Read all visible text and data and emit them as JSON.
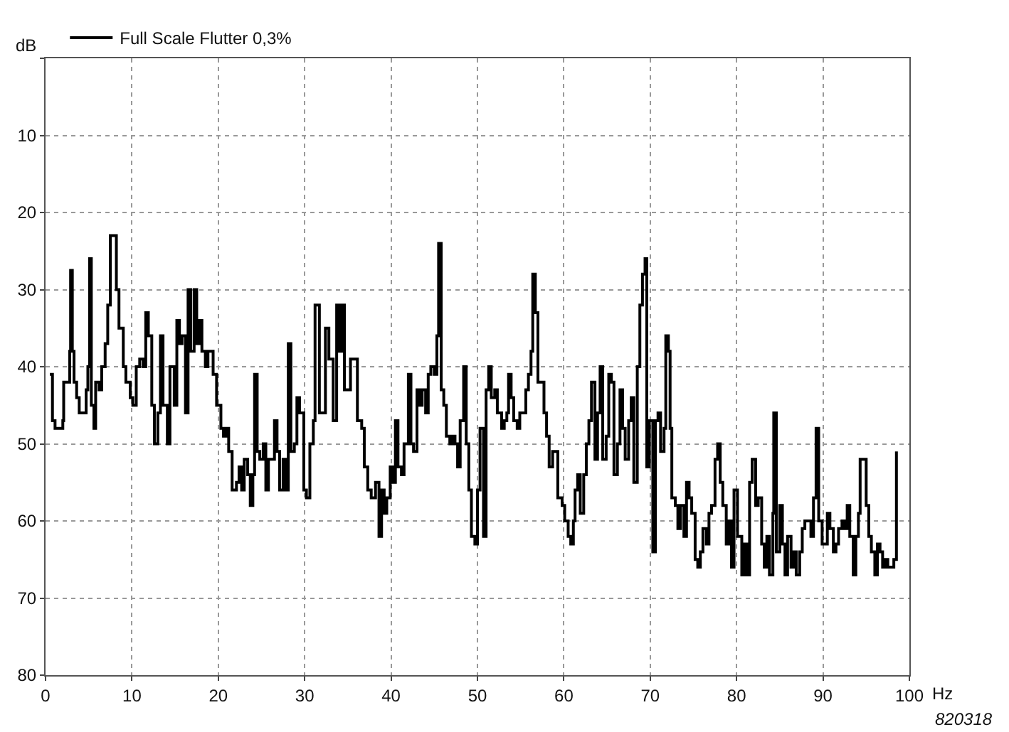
{
  "chart_data": {
    "type": "step",
    "xlabel": "Hz",
    "ylabel": "dB",
    "xlim": [
      0,
      100
    ],
    "xticks": [
      0,
      10,
      20,
      30,
      40,
      50,
      60,
      70,
      80,
      90,
      100
    ],
    "ylim": [
      80,
      0
    ],
    "yticks": [
      {
        "value": 0,
        "label": null
      },
      10,
      20,
      30,
      40,
      50,
      60,
      70,
      80
    ],
    "grid": true,
    "legend": "top left",
    "line_style": "solid",
    "marker": "none",
    "annotations": [
      "820318"
    ],
    "series": [
      {
        "name": "Full Scale Flutter 0,3%",
        "color": "#000000",
        "x": [
          0.5,
          0.8,
          1.1,
          1.6,
          2,
          2.1,
          2.6,
          2.8,
          2.9,
          3.1,
          3.3,
          3.6,
          3.9,
          4.4,
          4.7,
          4.9,
          5.1,
          5.3,
          5.6,
          5.8,
          6.2,
          6.5,
          6.9,
          7.2,
          7.5,
          8,
          8.2,
          8.5,
          9,
          9.3,
          9.8,
          10.1,
          10.5,
          10.9,
          11.3,
          11.6,
          11.9,
          12.3,
          12.6,
          13,
          13.3,
          13.6,
          14.1,
          14.4,
          14.9,
          15.2,
          15.5,
          15.8,
          16.2,
          16.5,
          16.8,
          17.2,
          17.5,
          17.8,
          18.1,
          18.5,
          18.8,
          19.1,
          19.4,
          19.8,
          20.3,
          20.6,
          20.9,
          21.2,
          21.6,
          22.1,
          22.4,
          22.7,
          23,
          23.4,
          23.7,
          24,
          24.2,
          24.5,
          24.8,
          25.2,
          25.5,
          25.8,
          26.1,
          26.5,
          26.8,
          27.1,
          27.5,
          27.8,
          28.1,
          28.4,
          28.8,
          29.1,
          29.4,
          29.7,
          29.9,
          30.2,
          30.6,
          31,
          31.2,
          31.7,
          32,
          32.4,
          32.8,
          33.3,
          33.7,
          34,
          34.3,
          34.6,
          35,
          35.3,
          35.8,
          36.1,
          36.6,
          36.9,
          37.3,
          37.7,
          38.2,
          38.6,
          38.9,
          39.2,
          39.5,
          39.9,
          40.2,
          40.5,
          40.8,
          41.2,
          41.5,
          42,
          42.3,
          42.6,
          43,
          43.3,
          43.6,
          44,
          44.3,
          44.6,
          45,
          45.3,
          45.5,
          45.8,
          46.1,
          46.4,
          46.8,
          47.1,
          47.4,
          47.7,
          48,
          48.4,
          48.7,
          49,
          49.3,
          49.7,
          50,
          50.3,
          50.7,
          51,
          51.3,
          51.6,
          52,
          52.3,
          52.8,
          53.1,
          53.4,
          53.6,
          53.9,
          54.2,
          54.6,
          54.9,
          55.2,
          55.6,
          55.9,
          56.2,
          56.4,
          56.7,
          57,
          57.4,
          57.7,
          58,
          58.3,
          58.7,
          59,
          59.3,
          59.8,
          60.1,
          60.5,
          60.8,
          61.1,
          61.3,
          61.6,
          61.9,
          62.3,
          62.6,
          62.9,
          63.2,
          63.6,
          63.9,
          64.2,
          64.5,
          64.9,
          65.2,
          65.5,
          65.8,
          66.2,
          66.5,
          66.8,
          67.1,
          67.5,
          67.8,
          68.1,
          68.5,
          68.8,
          69.1,
          69.4,
          69.6,
          69.9,
          70.3,
          70.6,
          70.9,
          71.2,
          71.6,
          71.8,
          72.1,
          72.3,
          72.5,
          72.9,
          73.2,
          73.5,
          73.9,
          74.2,
          74.5,
          74.8,
          75.2,
          75.5,
          75.8,
          76.1,
          76.5,
          76.8,
          77.1,
          77.5,
          77.8,
          78.1,
          78.4,
          78.8,
          79.1,
          79.4,
          79.7,
          80.1,
          80.6,
          80.9,
          81.2,
          81.5,
          81.8,
          82.2,
          82.5,
          82.9,
          83.2,
          83.5,
          83.8,
          84.2,
          84.3,
          84.6,
          85,
          85.3,
          85.6,
          85.9,
          86.3,
          86.6,
          86.9,
          87.3,
          87.6,
          87.9,
          88.2,
          88.6,
          88.9,
          89.2,
          89.5,
          89.9,
          90.2,
          90.5,
          90.8,
          91.2,
          91.5,
          91.8,
          92.2,
          92.5,
          92.8,
          93.1,
          93.5,
          93.8,
          94.1,
          94.3,
          94.6,
          95,
          95.3,
          95.6,
          96,
          96.3,
          96.6,
          96.9,
          97.2,
          97.5,
          97.9,
          98.2,
          98.5
        ],
        "values": [
          41,
          47,
          48,
          48,
          47,
          42,
          42,
          38,
          27.5,
          38,
          42,
          44,
          46,
          46,
          43,
          40,
          26,
          45,
          48,
          42,
          43,
          40,
          37,
          32,
          23,
          23,
          30,
          35,
          40,
          42,
          44,
          45,
          40,
          39,
          40,
          33,
          36,
          45,
          50,
          46,
          36,
          45,
          50,
          40,
          45,
          34,
          37,
          36,
          46,
          30,
          38,
          30,
          37,
          34,
          38,
          40,
          38,
          38,
          41,
          45,
          48,
          49,
          48,
          51,
          56,
          55,
          53,
          56,
          52,
          54,
          58,
          54,
          41,
          51,
          52,
          50,
          56,
          52,
          52,
          47,
          51,
          56,
          52,
          56,
          37,
          51,
          50,
          44,
          46,
          46,
          56,
          57,
          50,
          47,
          32,
          46,
          46,
          35,
          39,
          47,
          32,
          38,
          32,
          43,
          43,
          39,
          39,
          47,
          48,
          53,
          56,
          57,
          55,
          62,
          56,
          59,
          57,
          53,
          55,
          47,
          53,
          54,
          50,
          41,
          50,
          51,
          43,
          45,
          43,
          46,
          41,
          40,
          41,
          36,
          24,
          43,
          45,
          49,
          50,
          49,
          50,
          53,
          47,
          40,
          50,
          56,
          62,
          63,
          56,
          48,
          62,
          43,
          40,
          44,
          43,
          46,
          48,
          47,
          46,
          41,
          44,
          47,
          48,
          46,
          46,
          43,
          41,
          38,
          28,
          33,
          42,
          42,
          46,
          49,
          53,
          51,
          51,
          57,
          58,
          60,
          62,
          63,
          60,
          56,
          54,
          59,
          54,
          50,
          47,
          42,
          52,
          46,
          40,
          52,
          49,
          41,
          42,
          54,
          50,
          43,
          48,
          52,
          47,
          44,
          55,
          40,
          32,
          28,
          26,
          53,
          47,
          64,
          47,
          46,
          51,
          48,
          36,
          38,
          48,
          57,
          58,
          61,
          58,
          62,
          55,
          57,
          59,
          65,
          66,
          64,
          61,
          63,
          59,
          58,
          52,
          50,
          55,
          58,
          63,
          60,
          66,
          56,
          62,
          67,
          63,
          67,
          55,
          52,
          58,
          57,
          63,
          66,
          62,
          67,
          59,
          46,
          64,
          58,
          63,
          67,
          62,
          66,
          64,
          67,
          64,
          61,
          60,
          60,
          62,
          57,
          48,
          60,
          63,
          63,
          59,
          61,
          64,
          63,
          61,
          60,
          61,
          58,
          62,
          67,
          62,
          59,
          52,
          52,
          58,
          62,
          64,
          67,
          63,
          64,
          66,
          65,
          66,
          66,
          65,
          51
        ]
      }
    ]
  }
}
